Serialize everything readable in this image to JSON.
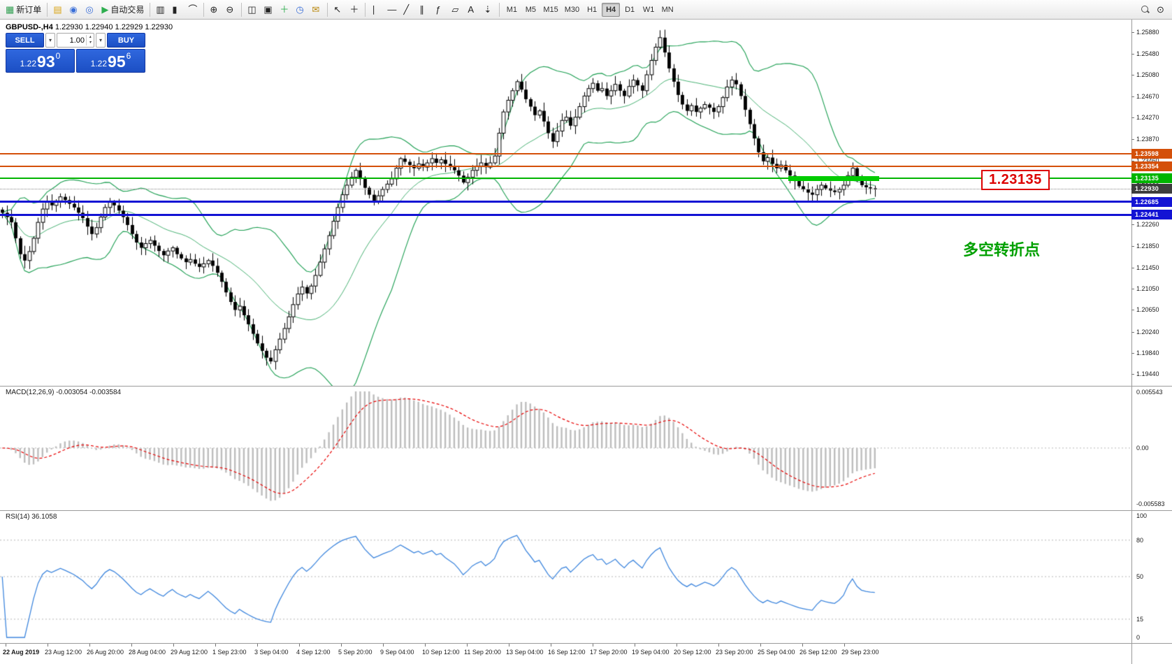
{
  "colors": {
    "accent_blue": "#1c4fc4",
    "accent_blue_light": "#2f67de",
    "level_orange": "#d4500a",
    "level_green": "#00b400",
    "level_blue": "#1313d4",
    "current_price_box": "#3d3d3d",
    "bands_green": "#1a9e50",
    "macd_histogram": "#bdbdbd",
    "macd_signal_red": "#e80000",
    "rsi_blue": "#3f87de",
    "highlight_green": "#00cc00",
    "callout_red": "#dd0000",
    "annotation_green": "#00a000"
  },
  "icons": {
    "dropdown_arrow": "▾",
    "step_up": "▴",
    "step_down": "▾"
  },
  "toolbar": {
    "groups": [
      {
        "buttons": [
          {
            "name": "new-order",
            "glyph": "▦",
            "glyph_color": "#2e9e4f",
            "label": "新订单"
          }
        ]
      },
      {
        "buttons": [
          {
            "name": "profiles",
            "glyph": "▤",
            "glyph_color": "#d9a416"
          },
          {
            "name": "terminal",
            "glyph": "◉",
            "glyph_color": "#3a6fd8"
          },
          {
            "name": "strategy-tester",
            "glyph": "◎",
            "glyph_color": "#3a6fd8"
          },
          {
            "name": "autotrade",
            "glyph": "▶",
            "glyph_color": "#2eae4f",
            "label": "自动交易"
          }
        ]
      },
      {
        "buttons": [
          {
            "name": "chart-bars",
            "glyph": "▥"
          },
          {
            "name": "chart-candles",
            "glyph": "▮"
          },
          {
            "name": "chart-line",
            "glyph": "⌒"
          }
        ]
      },
      {
        "buttons": [
          {
            "name": "zoom-in",
            "glyph": "⊕"
          },
          {
            "name": "zoom-out",
            "glyph": "⊖"
          }
        ]
      },
      {
        "buttons": [
          {
            "name": "tile-windows",
            "glyph": "◫"
          },
          {
            "name": "auto-arrange",
            "glyph": "▣"
          },
          {
            "name": "indicators-add",
            "glyph": "＋",
            "glyph_color": "#2eae4f"
          },
          {
            "name": "periods",
            "glyph": "◷",
            "glyph_color": "#3a6fd8"
          },
          {
            "name": "templates",
            "glyph": "✉",
            "glyph_color": "#b8860b"
          }
        ]
      },
      {
        "buttons": [
          {
            "name": "cursor",
            "glyph": "↖"
          },
          {
            "name": "crosshair",
            "glyph": "＋"
          }
        ]
      },
      {
        "buttons": [
          {
            "name": "vertical-line-tool",
            "glyph": "∣"
          },
          {
            "name": "horizontal-line-tool",
            "glyph": "—"
          },
          {
            "name": "trendline-tool",
            "glyph": "╱"
          },
          {
            "name": "channel-tool",
            "glyph": "∥"
          },
          {
            "name": "fibonacci-tool",
            "glyph": "ƒ"
          },
          {
            "name": "shapes-tool",
            "glyph": "▱"
          },
          {
            "name": "text-tool",
            "glyph": "A"
          },
          {
            "name": "arrow-tools",
            "glyph": "⇣"
          }
        ]
      }
    ],
    "timeframes": [
      "M1",
      "M5",
      "M15",
      "M30",
      "H1",
      "H4",
      "D1",
      "W1",
      "MN"
    ],
    "active_timeframe": "H4",
    "right_buttons": [
      {
        "name": "search",
        "glyph": ""
      },
      {
        "name": "quick-nav",
        "glyph": "⊙"
      }
    ]
  },
  "chart_header": {
    "symbol_title": "GBPUSD-,H4",
    "ohlc": "1.22930 1.22940 1.22929 1.22930"
  },
  "trade_panel": {
    "sell_label": "SELL",
    "buy_label": "BUY",
    "volume": "1.00",
    "sell_price_small": "1.22",
    "sell_price_big": "93",
    "sell_price_sup": "0",
    "buy_price_small": "1.22",
    "buy_price_big": "95",
    "buy_price_sup": "6"
  },
  "price_axis": {
    "ticks": [
      "1.25880",
      "1.25480",
      "1.25080",
      "1.24670",
      "1.24270",
      "1.23870",
      "1.23460",
      "1.23060",
      "1.22660",
      "1.22260",
      "1.21850",
      "1.21450",
      "1.21050",
      "1.20650",
      "1.20240",
      "1.19840",
      "1.19440"
    ]
  },
  "levels": [
    {
      "price": 1.23598,
      "label": "1.23598",
      "color": "#d4500a",
      "style": "solid",
      "width": 2
    },
    {
      "price": 1.23354,
      "label": "1.23354",
      "color": "#d4500a",
      "style": "solid",
      "width": 2
    },
    {
      "price": 1.23135,
      "label": "1.23135",
      "color": "#00b400",
      "style": "solid",
      "width": 2
    },
    {
      "price": 1.2293,
      "label": "1.22930",
      "color": "#888888",
      "style": "dotted",
      "width": 1,
      "box": "#3d3d3d"
    },
    {
      "price": 1.22685,
      "label": "1.22685",
      "color": "#1313d4",
      "style": "solid",
      "width": 3
    },
    {
      "price": 1.22441,
      "label": "1.22441",
      "color": "#1313d4",
      "style": "solid",
      "width": 3
    }
  ],
  "annotations": {
    "price_callout": "1.23135",
    "turning_point": "多空转折点"
  },
  "macd_panel": {
    "label": "MACD(12,26,9) -0.003054 -0.003584",
    "axis": [
      "0.005543",
      "0.00",
      "-0.005583"
    ]
  },
  "rsi_panel": {
    "label": "RSI(14) 36.1058",
    "axis_values": [
      100,
      80,
      50,
      15,
      0
    ],
    "level_lines": [
      80,
      50,
      15
    ]
  },
  "time_axis": {
    "labels": [
      "22 Aug 2019",
      "23 Aug 12:00",
      "26 Aug 20:00",
      "28 Aug 04:00",
      "29 Aug 12:00",
      "1 Sep 23:00",
      "3 Sep 04:00",
      "4 Sep 12:00",
      "5 Sep 20:00",
      "9 Sep 04:00",
      "10 Sep 12:00",
      "11 Sep 20:00",
      "13 Sep 04:00",
      "16 Sep 12:00",
      "17 Sep 20:00",
      "19 Sep 04:00",
      "20 Sep 12:00",
      "23 Sep 20:00",
      "25 Sep 04:00",
      "26 Sep 12:00",
      "29 Sep 23:00"
    ]
  },
  "chart_data": {
    "type": "candlestick",
    "symbol": "GBPUSD",
    "timeframe": "H4",
    "price_range": [
      1.1922,
      1.2612
    ],
    "closes": [
      1.2248,
      1.224,
      1.223,
      1.22,
      1.217,
      1.2158,
      1.2175,
      1.22,
      1.223,
      1.2255,
      1.2268,
      1.2262,
      1.227,
      1.2278,
      1.2272,
      1.2265,
      1.2258,
      1.2248,
      1.2238,
      1.2222,
      1.2208,
      1.222,
      1.224,
      1.2258,
      1.2268,
      1.2262,
      1.2252,
      1.224,
      1.2225,
      1.2208,
      1.2192,
      1.2182,
      1.219,
      1.2196,
      1.2186,
      1.2176,
      1.2168,
      1.2176,
      1.2182,
      1.217,
      1.2162,
      1.2155,
      1.216,
      1.2152,
      1.2146,
      1.2152,
      1.2158,
      1.2148,
      1.2135,
      1.2118,
      1.2098,
      1.208,
      1.2065,
      1.2072,
      1.2055,
      1.2038,
      1.202,
      1.2002,
      1.1988,
      1.1975,
      1.1968,
      1.199,
      1.201,
      1.203,
      1.2052,
      1.2075,
      1.2095,
      1.2108,
      1.2096,
      1.211,
      1.213,
      1.2155,
      1.218,
      1.2205,
      1.2232,
      1.2258,
      1.2282,
      1.23,
      1.2315,
      1.2328,
      1.2312,
      1.2295,
      1.2282,
      1.227,
      1.228,
      1.2292,
      1.2302,
      1.2312,
      1.2332,
      1.235,
      1.2344,
      1.2338,
      1.2332,
      1.234,
      1.2334,
      1.2342,
      1.235,
      1.2342,
      1.2348,
      1.234,
      1.2334,
      1.2328,
      1.2318,
      1.2305,
      1.2315,
      1.2328,
      1.2336,
      1.2342,
      1.2334,
      1.2342,
      1.2355,
      1.2398,
      1.2438,
      1.246,
      1.2478,
      1.2495,
      1.248,
      1.2462,
      1.2448,
      1.2432,
      1.244,
      1.242,
      1.2398,
      1.2382,
      1.2402,
      1.2422,
      1.2428,
      1.2412,
      1.2428,
      1.2448,
      1.2468,
      1.2482,
      1.2492,
      1.2478,
      1.2482,
      1.2468,
      1.2478,
      1.249,
      1.2478,
      1.2468,
      1.2486,
      1.2498,
      1.2488,
      1.2478,
      1.2508,
      1.2535,
      1.256,
      1.2578,
      1.255,
      1.252,
      1.2495,
      1.247,
      1.2452,
      1.244,
      1.245,
      1.2438,
      1.2445,
      1.2452,
      1.2446,
      1.2438,
      1.2448,
      1.2465,
      1.2485,
      1.2498,
      1.249,
      1.2468,
      1.2442,
      1.2415,
      1.2388,
      1.2362,
      1.2345,
      1.2352,
      1.234,
      1.2332,
      1.2338,
      1.2328,
      1.2318,
      1.2308,
      1.2298,
      1.2292,
      1.2286,
      1.2282,
      1.2292,
      1.23,
      1.2294,
      1.229,
      1.2287,
      1.2292,
      1.23,
      1.2318,
      1.2332,
      1.2312,
      1.23,
      1.2296,
      1.2294,
      1.2293
    ],
    "bollinger": {
      "period": 20,
      "deviation": 2
    },
    "macd": {
      "fast": 12,
      "slow": 26,
      "signal": 9,
      "value": -0.003054,
      "signal_value": -0.003584,
      "range": [
        -0.0058,
        0.0058
      ]
    },
    "rsi": {
      "period": 14,
      "value": 36.1058,
      "range": [
        0,
        100
      ]
    },
    "highlight_segment": {
      "price": 1.2313,
      "from_frac": 0.697,
      "to_frac": 0.777,
      "thickness": 7
    }
  }
}
